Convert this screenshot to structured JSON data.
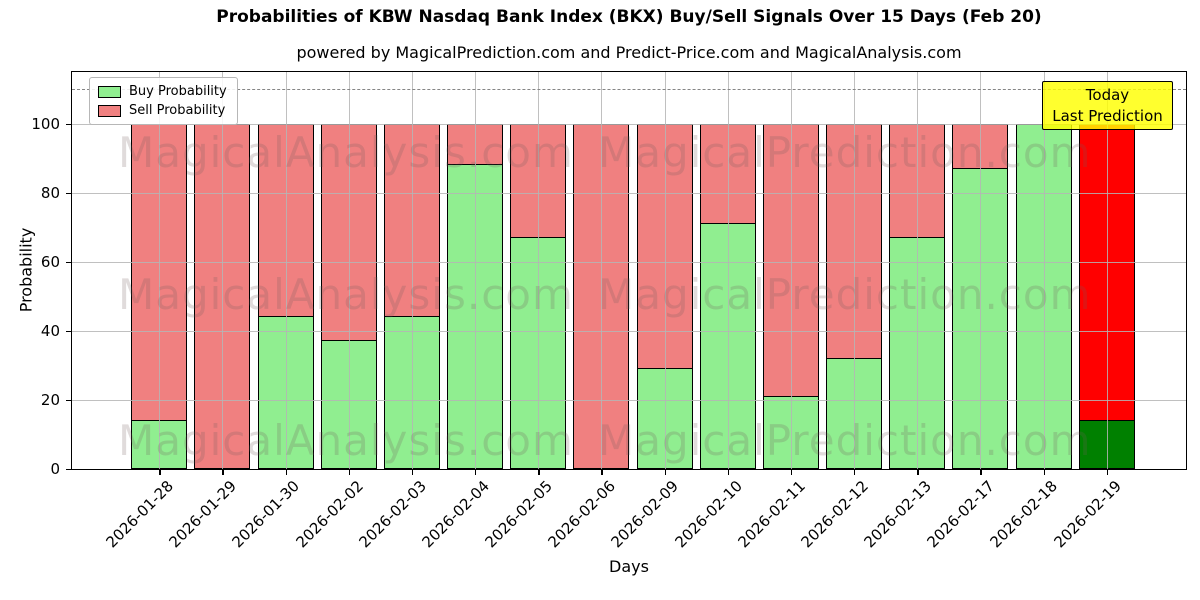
{
  "chart_data": {
    "type": "bar",
    "stacked": true,
    "title": "Probabilities of KBW Nasdaq Bank Index (BKX) Buy/Sell Signals Over 15 Days (Feb 20)",
    "subtitle": "powered by MagicalPrediction.com and Predict-Price.com and MagicalAnalysis.com",
    "xlabel": "Days",
    "ylabel": "Probability",
    "ylim": [
      0,
      115
    ],
    "yticks": [
      0,
      20,
      40,
      60,
      80,
      100
    ],
    "grid": true,
    "legend_position": "upper-left",
    "dashed_line_y": 110,
    "categories": [
      "2026-01-28",
      "2026-01-29",
      "2026-01-30",
      "2026-02-02",
      "2026-02-03",
      "2026-02-04",
      "2026-02-05",
      "2026-02-06",
      "2026-02-09",
      "2026-02-10",
      "2026-02-11",
      "2026-02-12",
      "2026-02-13",
      "2026-02-17",
      "2026-02-18",
      "2026-02-19"
    ],
    "series": [
      {
        "name": "Buy Probability",
        "color": "#90EE90",
        "values": [
          14,
          0,
          44,
          37,
          44,
          88,
          67,
          0,
          29,
          71,
          21,
          32,
          67,
          87,
          100,
          14
        ]
      },
      {
        "name": "Sell Probability",
        "color": "#F08080",
        "values": [
          86,
          100,
          56,
          63,
          56,
          12,
          33,
          100,
          71,
          29,
          79,
          68,
          33,
          13,
          0,
          86
        ]
      }
    ],
    "today_bar": {
      "category": "2026-02-19",
      "index": 15,
      "buy_color": "#008000",
      "sell_color": "#FF0000"
    },
    "annotation": {
      "lines": [
        "Today",
        "Last Prediction"
      ],
      "bg": "#FFFF00"
    },
    "watermarks": [
      "MagicalAnalysis.com",
      "MagicalPrediction.com"
    ],
    "bar_edge_color": "#000000"
  }
}
